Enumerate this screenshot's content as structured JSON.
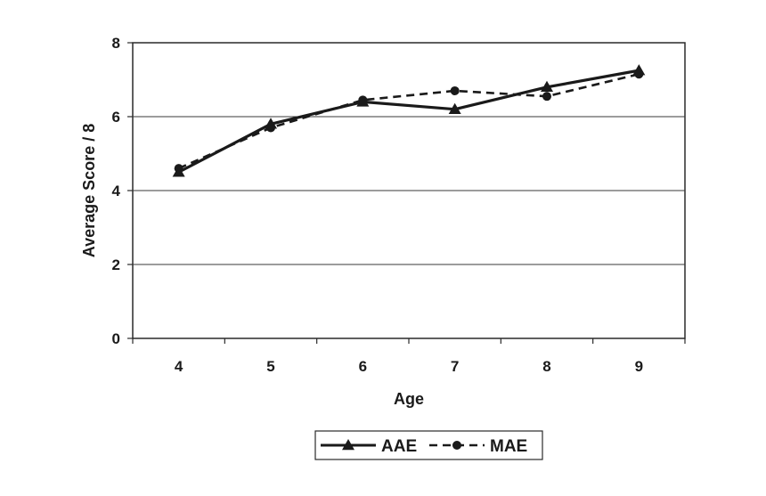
{
  "chart_data": {
    "type": "line",
    "x": [
      4,
      5,
      6,
      7,
      8,
      9
    ],
    "xlabel": "Age",
    "ylabel": "Average Score / 8",
    "ylim": [
      0,
      8
    ],
    "yticks": [
      0,
      2,
      4,
      6,
      8
    ],
    "grid": "horizontal",
    "legend_position": "bottom",
    "series": [
      {
        "name": "AAE",
        "values": [
          4.5,
          5.8,
          6.4,
          6.2,
          6.8,
          7.25
        ],
        "line_style": "solid",
        "marker": "triangle",
        "color": "#1a1a1a"
      },
      {
        "name": "MAE",
        "values": [
          4.6,
          5.7,
          6.45,
          6.7,
          6.55,
          7.15
        ],
        "line_style": "dashed",
        "marker": "circle",
        "color": "#1a1a1a"
      }
    ]
  }
}
